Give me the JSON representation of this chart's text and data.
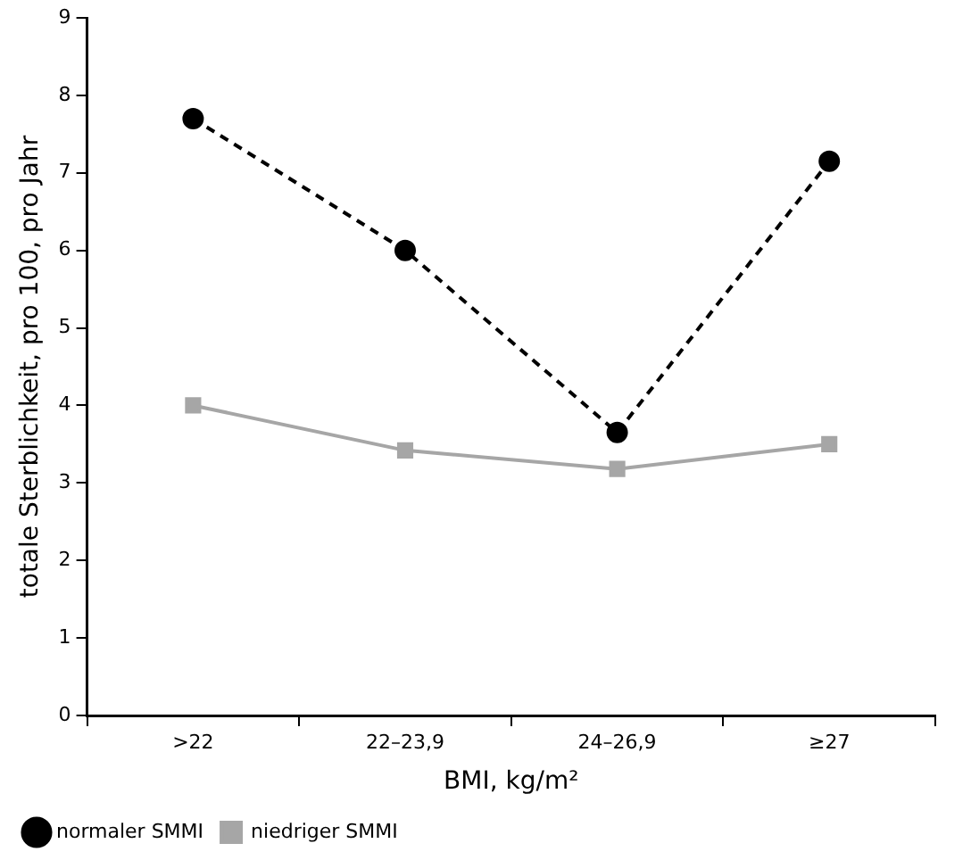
{
  "chart_data": {
    "type": "line",
    "xlabel": "BMI, kg/m²",
    "ylabel": "totale Sterblichkeit, pro 100, pro Jahr",
    "categories": [
      ">22",
      "22–23,9",
      "24–26,9",
      "≥27"
    ],
    "series": [
      {
        "name": "normaler SMMI",
        "color": "#000000",
        "marker": "circle",
        "line_style": "dashed",
        "values": [
          7.7,
          6.0,
          3.65,
          7.15
        ]
      },
      {
        "name": "niedriger SMMI",
        "color": "#a6a6a6",
        "marker": "square",
        "line_style": "solid",
        "values": [
          4.0,
          3.42,
          3.18,
          3.5
        ]
      }
    ],
    "ylim": [
      0,
      9
    ],
    "yticks": [
      0,
      1,
      2,
      3,
      4,
      5,
      6,
      7,
      8,
      9
    ],
    "grid": false,
    "legend": "bottom left"
  }
}
